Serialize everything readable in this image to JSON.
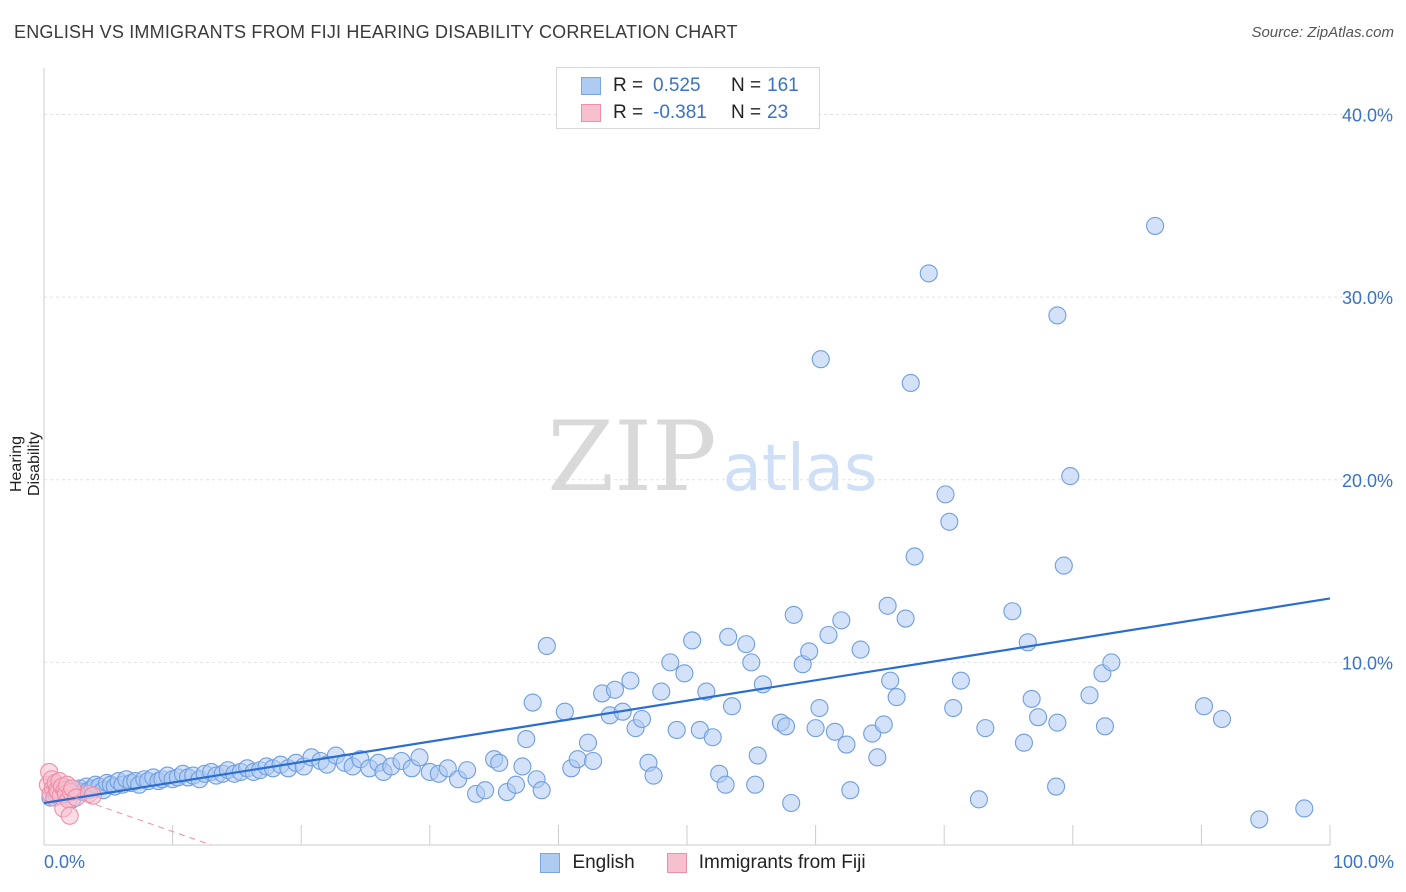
{
  "title": "ENGLISH VS IMMIGRANTS FROM FIJI HEARING DISABILITY CORRELATION CHART",
  "source": "Source: ZipAtlas.com",
  "watermark": {
    "zip": "ZIP",
    "atlas": "atlas"
  },
  "legend": [
    {
      "r_label": "R =",
      "r_value": "0.525",
      "n_label": "N =",
      "n_value": "161",
      "color": "#aecbf2",
      "border": "#7aa6e0"
    },
    {
      "r_label": "R =",
      "r_value": "-0.381",
      "n_label": "N =",
      "n_value": "23",
      "color": "#f7c0cf",
      "border": "#ee8fa8"
    }
  ],
  "bottom_legend": [
    {
      "label": "English",
      "color": "#aecbf2",
      "border": "#7aa6e0"
    },
    {
      "label": "Immigrants from Fiji",
      "color": "#f7c0cf",
      "border": "#ee8fa8"
    }
  ],
  "x_axis": {
    "min_label": "0.0%",
    "max_label": "100.0%"
  },
  "chart_data": {
    "type": "scatter",
    "title": "ENGLISH VS IMMIGRANTS FROM FIJI HEARING DISABILITY CORRELATION CHART",
    "xlabel": "",
    "ylabel": "Hearing Disability",
    "xlim": [
      0,
      100
    ],
    "ylim": [
      0,
      42
    ],
    "yticks": [
      10,
      20,
      30,
      40
    ],
    "ytick_labels": [
      "10.0%",
      "20.0%",
      "30.0%",
      "40.0%"
    ],
    "grid": true,
    "series": [
      {
        "name": "English",
        "color": "#aecbf2",
        "stroke": "#6f9ee0",
        "trend": {
          "x": [
            0,
            100
          ],
          "y": [
            2.3,
            13.5
          ],
          "color": "#2a6ed0"
        },
        "points": [
          [
            0.5,
            2.6
          ],
          [
            0.8,
            2.9
          ],
          [
            1.0,
            2.7
          ],
          [
            1.2,
            3.0
          ],
          [
            1.5,
            2.8
          ],
          [
            1.8,
            3.1
          ],
          [
            2.0,
            2.9
          ],
          [
            2.2,
            2.5
          ],
          [
            2.5,
            3.0
          ],
          [
            2.8,
            3.1
          ],
          [
            3.0,
            2.9
          ],
          [
            3.3,
            3.2
          ],
          [
            3.5,
            3.0
          ],
          [
            3.8,
            3.1
          ],
          [
            4.0,
            3.3
          ],
          [
            4.3,
            3.2
          ],
          [
            4.6,
            3.0
          ],
          [
            4.9,
            3.4
          ],
          [
            5.2,
            3.3
          ],
          [
            5.5,
            3.2
          ],
          [
            5.8,
            3.5
          ],
          [
            6.1,
            3.3
          ],
          [
            6.4,
            3.6
          ],
          [
            6.8,
            3.4
          ],
          [
            7.1,
            3.5
          ],
          [
            7.4,
            3.3
          ],
          [
            7.8,
            3.6
          ],
          [
            8.1,
            3.5
          ],
          [
            8.5,
            3.7
          ],
          [
            8.9,
            3.5
          ],
          [
            9.2,
            3.6
          ],
          [
            9.6,
            3.8
          ],
          [
            10.0,
            3.6
          ],
          [
            10.4,
            3.7
          ],
          [
            10.8,
            3.9
          ],
          [
            11.2,
            3.7
          ],
          [
            11.6,
            3.8
          ],
          [
            12.1,
            3.6
          ],
          [
            12.5,
            3.9
          ],
          [
            13.0,
            4.0
          ],
          [
            13.4,
            3.8
          ],
          [
            13.9,
            3.9
          ],
          [
            14.3,
            4.1
          ],
          [
            14.8,
            3.9
          ],
          [
            15.3,
            4.0
          ],
          [
            15.8,
            4.2
          ],
          [
            16.3,
            4.0
          ],
          [
            16.8,
            4.1
          ],
          [
            17.3,
            4.3
          ],
          [
            17.8,
            4.2
          ],
          [
            18.4,
            4.4
          ],
          [
            19.0,
            4.2
          ],
          [
            19.6,
            4.5
          ],
          [
            20.2,
            4.3
          ],
          [
            20.8,
            4.8
          ],
          [
            21.5,
            4.6
          ],
          [
            22.0,
            4.4
          ],
          [
            22.7,
            4.9
          ],
          [
            23.4,
            4.5
          ],
          [
            24.0,
            4.3
          ],
          [
            24.6,
            4.7
          ],
          [
            25.3,
            4.2
          ],
          [
            26.0,
            4.5
          ],
          [
            26.4,
            4.0
          ],
          [
            27.0,
            4.3
          ],
          [
            27.8,
            4.6
          ],
          [
            28.6,
            4.2
          ],
          [
            29.2,
            4.8
          ],
          [
            30.0,
            4.0
          ],
          [
            30.7,
            3.9
          ],
          [
            31.4,
            4.2
          ],
          [
            32.2,
            3.6
          ],
          [
            32.9,
            4.1
          ],
          [
            33.6,
            2.8
          ],
          [
            34.3,
            3.0
          ],
          [
            35.0,
            4.7
          ],
          [
            35.4,
            4.5
          ],
          [
            36.0,
            2.9
          ],
          [
            36.7,
            3.3
          ],
          [
            37.5,
            5.8
          ],
          [
            37.2,
            4.3
          ],
          [
            38.3,
            3.6
          ],
          [
            38.7,
            3.0
          ],
          [
            38.0,
            7.8
          ],
          [
            39.1,
            10.9
          ],
          [
            40.5,
            7.3
          ],
          [
            41.0,
            4.2
          ],
          [
            41.5,
            4.7
          ],
          [
            42.3,
            5.6
          ],
          [
            42.7,
            4.6
          ],
          [
            43.4,
            8.3
          ],
          [
            44.0,
            7.1
          ],
          [
            44.4,
            8.5
          ],
          [
            45.0,
            7.3
          ],
          [
            45.6,
            9.0
          ],
          [
            46.0,
            6.4
          ],
          [
            46.5,
            6.9
          ],
          [
            47.0,
            4.5
          ],
          [
            47.4,
            3.8
          ],
          [
            48.0,
            8.4
          ],
          [
            48.7,
            10.0
          ],
          [
            49.2,
            6.3
          ],
          [
            49.8,
            9.4
          ],
          [
            50.4,
            11.2
          ],
          [
            51.0,
            6.3
          ],
          [
            51.5,
            8.4
          ],
          [
            52.0,
            5.9
          ],
          [
            52.5,
            3.9
          ],
          [
            53.0,
            3.3
          ],
          [
            53.5,
            7.6
          ],
          [
            53.2,
            11.4
          ],
          [
            54.6,
            11.0
          ],
          [
            55.0,
            10.0
          ],
          [
            55.3,
            3.3
          ],
          [
            55.5,
            4.9
          ],
          [
            55.9,
            8.8
          ],
          [
            57.3,
            6.7
          ],
          [
            57.7,
            6.5
          ],
          [
            58.1,
            2.3
          ],
          [
            58.3,
            12.6
          ],
          [
            59.0,
            9.9
          ],
          [
            59.5,
            10.6
          ],
          [
            60.0,
            6.4
          ],
          [
            60.3,
            7.5
          ],
          [
            60.4,
            26.6
          ],
          [
            61.0,
            11.5
          ],
          [
            61.5,
            6.2
          ],
          [
            62.0,
            12.3
          ],
          [
            62.4,
            5.5
          ],
          [
            62.7,
            3.0
          ],
          [
            63.5,
            10.7
          ],
          [
            64.4,
            6.1
          ],
          [
            64.8,
            4.8
          ],
          [
            65.3,
            6.6
          ],
          [
            65.6,
            13.1
          ],
          [
            65.8,
            9.0
          ],
          [
            66.3,
            8.1
          ],
          [
            67.0,
            12.4
          ],
          [
            67.4,
            25.3
          ],
          [
            67.7,
            15.8
          ],
          [
            68.8,
            31.3
          ],
          [
            70.1,
            19.2
          ],
          [
            70.4,
            17.7
          ],
          [
            70.7,
            7.5
          ],
          [
            71.3,
            9.0
          ],
          [
            72.7,
            2.5
          ],
          [
            73.2,
            6.4
          ],
          [
            75.3,
            12.8
          ],
          [
            76.2,
            5.6
          ],
          [
            76.5,
            11.1
          ],
          [
            76.8,
            8.0
          ],
          [
            77.3,
            7.0
          ],
          [
            78.7,
            3.2
          ],
          [
            78.8,
            6.7
          ],
          [
            78.8,
            29.0
          ],
          [
            79.3,
            15.3
          ],
          [
            79.8,
            20.2
          ],
          [
            81.3,
            8.2
          ],
          [
            82.3,
            9.4
          ],
          [
            82.5,
            6.5
          ],
          [
            83.0,
            10.0
          ],
          [
            86.4,
            33.9
          ],
          [
            90.2,
            7.6
          ],
          [
            91.6,
            6.9
          ],
          [
            94.5,
            1.4
          ],
          [
            98.0,
            2.0
          ]
        ]
      },
      {
        "name": "Immigrants from Fiji",
        "color": "#f7c0cf",
        "stroke": "#ee8fa8",
        "trend": {
          "x": [
            0,
            13
          ],
          "y": [
            3.2,
            0
          ],
          "color": "#ee8fa8",
          "dashed": true
        },
        "points": [
          [
            0.3,
            3.3
          ],
          [
            0.4,
            4.0
          ],
          [
            0.5,
            2.8
          ],
          [
            0.6,
            3.6
          ],
          [
            0.7,
            3.1
          ],
          [
            0.8,
            2.6
          ],
          [
            0.9,
            3.4
          ],
          [
            1.0,
            3.0
          ],
          [
            1.1,
            2.9
          ],
          [
            1.2,
            3.5
          ],
          [
            1.3,
            2.7
          ],
          [
            1.4,
            3.2
          ],
          [
            1.5,
            2.0
          ],
          [
            1.6,
            3.0
          ],
          [
            1.7,
            2.8
          ],
          [
            1.8,
            3.3
          ],
          [
            1.9,
            2.5
          ],
          [
            2.0,
            1.6
          ],
          [
            2.1,
            2.9
          ],
          [
            2.2,
            3.1
          ],
          [
            2.5,
            2.6
          ],
          [
            3.5,
            2.8
          ],
          [
            3.8,
            2.7
          ]
        ]
      }
    ]
  }
}
